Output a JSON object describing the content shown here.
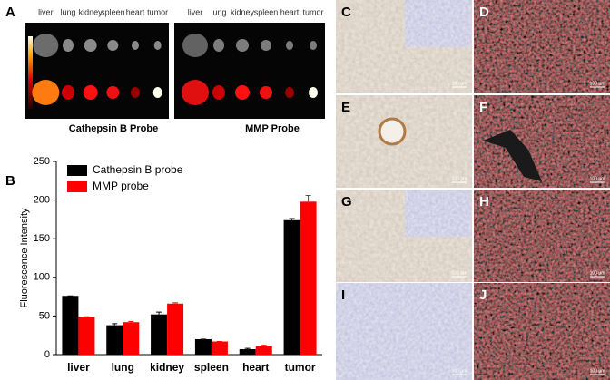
{
  "panel_a": {
    "label": "A",
    "organs": [
      "liver",
      "lung",
      "kidney",
      "spleen",
      "heart",
      "tumor"
    ],
    "probes": [
      "Cathepsin B Probe",
      "MMP Probe"
    ]
  },
  "chart_data": {
    "type": "bar",
    "panel_label": "B",
    "y_label": "Fluorescence Intensity",
    "categories": [
      "liver",
      "lung",
      "kidney",
      "spleen",
      "heart",
      "tumor"
    ],
    "series": [
      {
        "name": "Cathepsin B probe",
        "color": "#000000",
        "values": [
          76,
          38,
          52,
          20,
          7,
          174
        ],
        "errors": [
          0,
          2,
          3,
          0,
          1,
          2
        ]
      },
      {
        "name": "MMP probe",
        "color": "#ff0000",
        "values": [
          49,
          42,
          66,
          17,
          11,
          198
        ],
        "errors": [
          0,
          1,
          1,
          0,
          1,
          8
        ]
      }
    ],
    "ylim": [
      0,
      250
    ],
    "yticks": [
      0,
      50,
      100,
      150,
      200,
      250
    ],
    "grid": false,
    "legend": "top-left"
  },
  "micrographs": {
    "labels": [
      "C",
      "D",
      "E",
      "F",
      "G",
      "H",
      "I",
      "J"
    ],
    "scale": "100 µm"
  }
}
